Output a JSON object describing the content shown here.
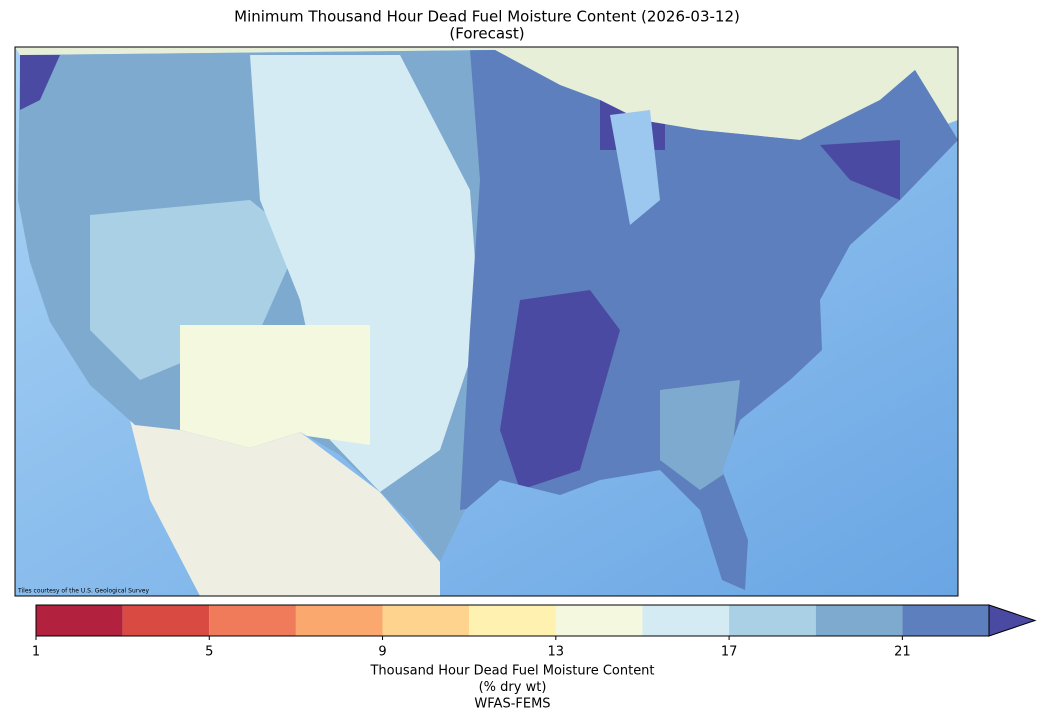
{
  "title": "Minimum Thousand Hour Dead Fuel Moisture Content (2026-03-12)",
  "subtitle": "(Forecast)",
  "map": {
    "credit": "Tiles courtesy of the U.S. Geological Survey"
  },
  "colorbar": {
    "bounds": [
      1,
      3,
      5,
      7,
      9,
      11,
      13,
      15,
      17,
      19,
      21,
      23
    ],
    "colors": [
      "#b2223e",
      "#d94a43",
      "#f07b5a",
      "#faa86d",
      "#fed38e",
      "#fff2b0",
      "#f3f8df",
      "#d4ebf3",
      "#a9d0e4",
      "#7eaacf",
      "#5d7fbd"
    ],
    "extend": "max",
    "extend_color": "#4b4aa2",
    "ticks": [
      1,
      5,
      9,
      13,
      17,
      21
    ],
    "label_lines": [
      "Thousand Hour Dead Fuel Moisture Content",
      "(% dry wt)",
      "WFAS-FEMS"
    ]
  }
}
